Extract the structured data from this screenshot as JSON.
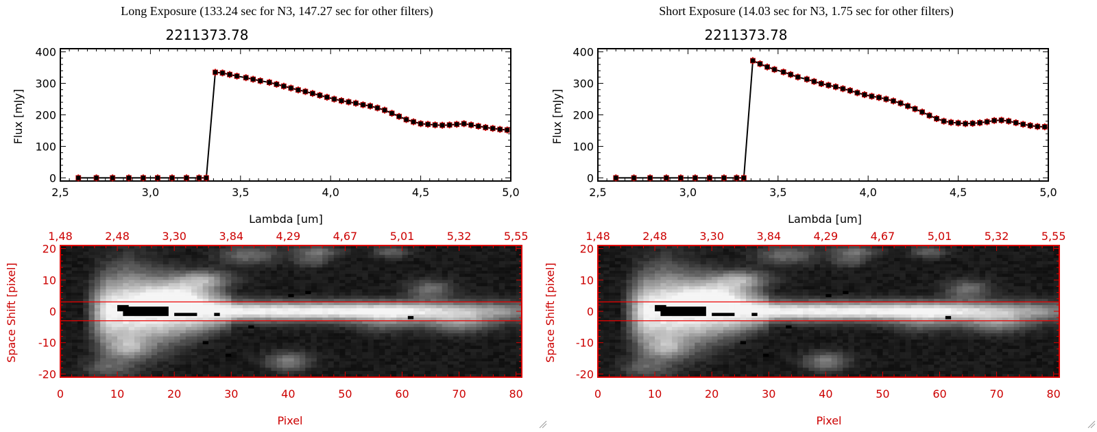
{
  "panels": [
    {
      "id": "long",
      "caption": "Long Exposure (133.24 sec for N3, 147.27 sec for other filters)",
      "chart_data": {
        "type": "line",
        "title": "2211373.78",
        "xlabel": "Lambda [um]",
        "ylabel": "Flux [mJy]",
        "xlim": [
          2.5,
          5.0
        ],
        "ylim": [
          -10,
          410
        ],
        "xticks": [
          "2.5",
          "3.0",
          "3.5",
          "4.0",
          "4.5",
          "5.0"
        ],
        "yticks": [
          "0",
          "100",
          "200",
          "300",
          "400"
        ],
        "series": [
          {
            "x": [
              2.6,
              2.7,
              2.79,
              2.88,
              2.96,
              3.04,
              3.12,
              3.2,
              3.27,
              3.31,
              3.36,
              3.4,
              3.44,
              3.48,
              3.53,
              3.57,
              3.61,
              3.66,
              3.7,
              3.74,
              3.78,
              3.82,
              3.86,
              3.9,
              3.94,
              3.98,
              4.02,
              4.06,
              4.1,
              4.14,
              4.18,
              4.22,
              4.26,
              4.3,
              4.34,
              4.38,
              4.42,
              4.46,
              4.5,
              4.54,
              4.58,
              4.62,
              4.66,
              4.7,
              4.74,
              4.78,
              4.82,
              4.86,
              4.9,
              4.94,
              4.98
            ],
            "y": [
              0,
              0,
              0,
              0,
              0,
              0,
              0,
              0,
              0,
              0,
              335,
              333,
              328,
              323,
              318,
              313,
              308,
              303,
              297,
              291,
              285,
              279,
              274,
              268,
              262,
              256,
              250,
              245,
              241,
              237,
              232,
              228,
              222,
              215,
              205,
              195,
              185,
              178,
              172,
              170,
              168,
              167,
              168,
              170,
              172,
              168,
              164,
              160,
              157,
              154,
              152
            ]
          }
        ]
      },
      "heatmap": {
        "top_ticks": [
          "1.48",
          "2.48",
          "3.30",
          "3.84",
          "4.29",
          "4.67",
          "5.01",
          "5.32",
          "5.55"
        ],
        "bottom_ticks": [
          "0",
          "10",
          "20",
          "30",
          "40",
          "50",
          "60",
          "70",
          "80"
        ],
        "y_ticks": [
          "20",
          "10",
          "0",
          "-10",
          "-20"
        ],
        "xlabel": "Pixel",
        "ylabel": "Space Shift [pixel]",
        "xlim": [
          0,
          81
        ],
        "ylim": [
          -21,
          21
        ],
        "aperture": [
          -3,
          3
        ]
      }
    },
    {
      "id": "short",
      "caption": "Short Exposure (14.03 sec for N3, 1.75 sec for other filters)",
      "chart_data": {
        "type": "line",
        "title": "2211373.78",
        "xlabel": "Lambda [um]",
        "ylabel": "Flux [mJy]",
        "xlim": [
          2.5,
          5.0
        ],
        "ylim": [
          -10,
          410
        ],
        "xticks": [
          "2.5",
          "3.0",
          "3.5",
          "4.0",
          "4.5",
          "5.0"
        ],
        "yticks": [
          "0",
          "100",
          "200",
          "300",
          "400"
        ],
        "series": [
          {
            "x": [
              2.6,
              2.7,
              2.79,
              2.88,
              2.96,
              3.04,
              3.12,
              3.2,
              3.27,
              3.31,
              3.36,
              3.4,
              3.44,
              3.48,
              3.53,
              3.57,
              3.61,
              3.66,
              3.7,
              3.74,
              3.78,
              3.82,
              3.86,
              3.9,
              3.94,
              3.98,
              4.02,
              4.06,
              4.1,
              4.14,
              4.18,
              4.22,
              4.26,
              4.3,
              4.34,
              4.38,
              4.42,
              4.46,
              4.5,
              4.54,
              4.58,
              4.62,
              4.66,
              4.7,
              4.74,
              4.78,
              4.82,
              4.86,
              4.9,
              4.94,
              4.98
            ],
            "y": [
              0,
              0,
              0,
              0,
              0,
              0,
              0,
              0,
              0,
              0,
              372,
              362,
              352,
              344,
              336,
              328,
              320,
              313,
              306,
              299,
              294,
              289,
              283,
              277,
              270,
              264,
              259,
              255,
              250,
              244,
              237,
              228,
              219,
              209,
              198,
              188,
              180,
              176,
              174,
              172,
              173,
              175,
              178,
              182,
              183,
              180,
              175,
              170,
              166,
              163,
              162
            ]
          }
        ]
      },
      "heatmap": {
        "top_ticks": [
          "1.48",
          "2.48",
          "3.30",
          "3.84",
          "4.29",
          "4.67",
          "5.01",
          "5.32",
          "5.55"
        ],
        "bottom_ticks": [
          "0",
          "10",
          "20",
          "30",
          "40",
          "50",
          "60",
          "70",
          "80"
        ],
        "y_ticks": [
          "20",
          "10",
          "0",
          "-10",
          "-20"
        ],
        "xlabel": "Pixel",
        "ylabel": "Space Shift [pixel]",
        "xlim": [
          0,
          81
        ],
        "ylim": [
          -21,
          21
        ],
        "aperture": [
          -3,
          3
        ]
      }
    }
  ],
  "colors": {
    "line": "#000000",
    "marker": "#000000",
    "marker_error": "#cc0000",
    "heatmap_axis": "#dd0000",
    "aperture_line": "#ee0000"
  }
}
